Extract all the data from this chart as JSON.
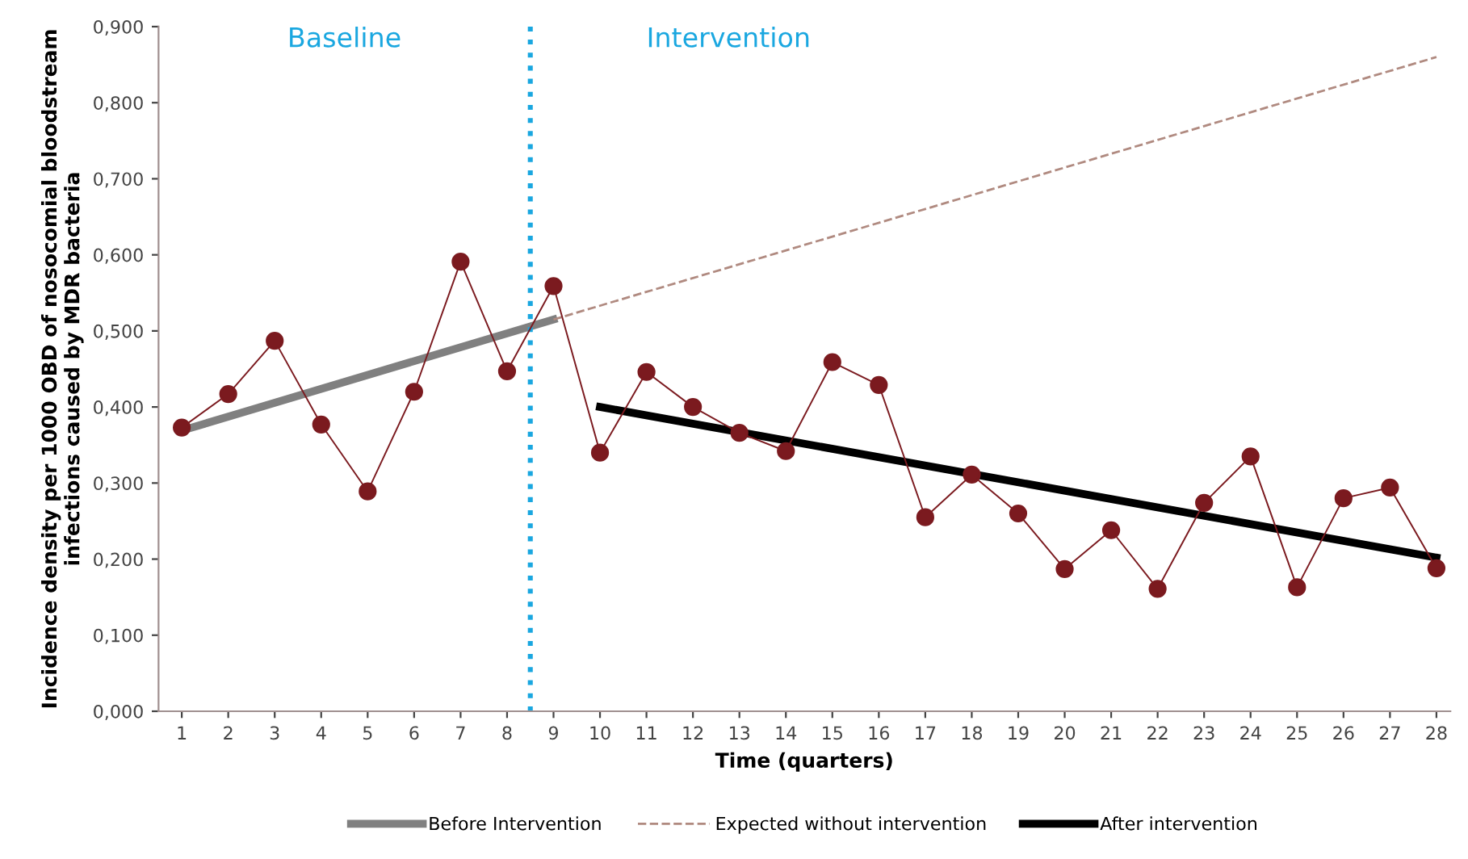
{
  "chart_data": {
    "type": "line",
    "xlabel": "Time (quarters)",
    "ylabel": "Incidence density per 1000 OBD of nosocomial bloodstream infections caused by MDR bacteria",
    "x": [
      1,
      2,
      3,
      4,
      5,
      6,
      7,
      8,
      9,
      10,
      11,
      12,
      13,
      14,
      15,
      16,
      17,
      18,
      19,
      20,
      21,
      22,
      23,
      24,
      25,
      26,
      27,
      28
    ],
    "series": [
      {
        "color": "#7b1a1f",
        "marker": "circle",
        "line_style": "solid",
        "values": [
          0.373,
          0.417,
          0.487,
          0.377,
          0.289,
          0.42,
          0.591,
          0.447,
          0.559,
          0.34,
          0.446,
          0.4,
          0.366,
          0.342,
          0.459,
          0.429,
          0.255,
          0.311,
          0.26,
          0.187,
          0.238,
          0.161,
          0.274,
          0.335,
          0.163,
          0.28,
          0.294,
          0.188
        ]
      },
      {
        "name": "Before Intervention",
        "color": "#808080",
        "marker": "none",
        "line_style": "solid",
        "x": [
          1,
          9
        ],
        "values": [
          0.369,
          0.515
        ]
      },
      {
        "name": "Expected without intervention",
        "color": "#b08a80",
        "marker": "none",
        "line_style": "dashed",
        "x": [
          9,
          28
        ],
        "values": [
          0.515,
          0.86
        ]
      },
      {
        "name": "After intervention",
        "color": "#000000",
        "marker": "none",
        "line_style": "solid",
        "x": [
          10,
          28
        ],
        "values": [
          0.4,
          0.202
        ]
      }
    ],
    "xlim": [
      0.5,
      28.3
    ],
    "xticks": [
      1,
      2,
      3,
      4,
      5,
      6,
      7,
      8,
      9,
      10,
      11,
      12,
      13,
      14,
      15,
      16,
      17,
      18,
      19,
      20,
      21,
      22,
      23,
      24,
      25,
      26,
      27,
      28
    ],
    "ylim": [
      0,
      0.9
    ],
    "yticks": [
      {
        "value": 0,
        "label": "0,000"
      },
      {
        "value": 0.1,
        "label": "0,100"
      },
      {
        "value": 0.2,
        "label": "0,200"
      },
      {
        "value": 0.3,
        "label": "0,300"
      },
      {
        "value": 0.4,
        "label": "0,400"
      },
      {
        "value": 0.5,
        "label": "0,500"
      },
      {
        "value": 0.6,
        "label": "0,600"
      },
      {
        "value": 0.7,
        "label": "0,700"
      },
      {
        "value": 0.8,
        "label": "0,800"
      },
      {
        "value": 0.9,
        "label": "0,900"
      }
    ],
    "ref_lines": [
      {
        "axis": "x",
        "value": 8.5,
        "color": "#1aa7e0",
        "line_style": "dotted"
      }
    ],
    "annotations": [
      "Baseline",
      "Intervention"
    ],
    "grid": false,
    "legend": "bottom"
  }
}
